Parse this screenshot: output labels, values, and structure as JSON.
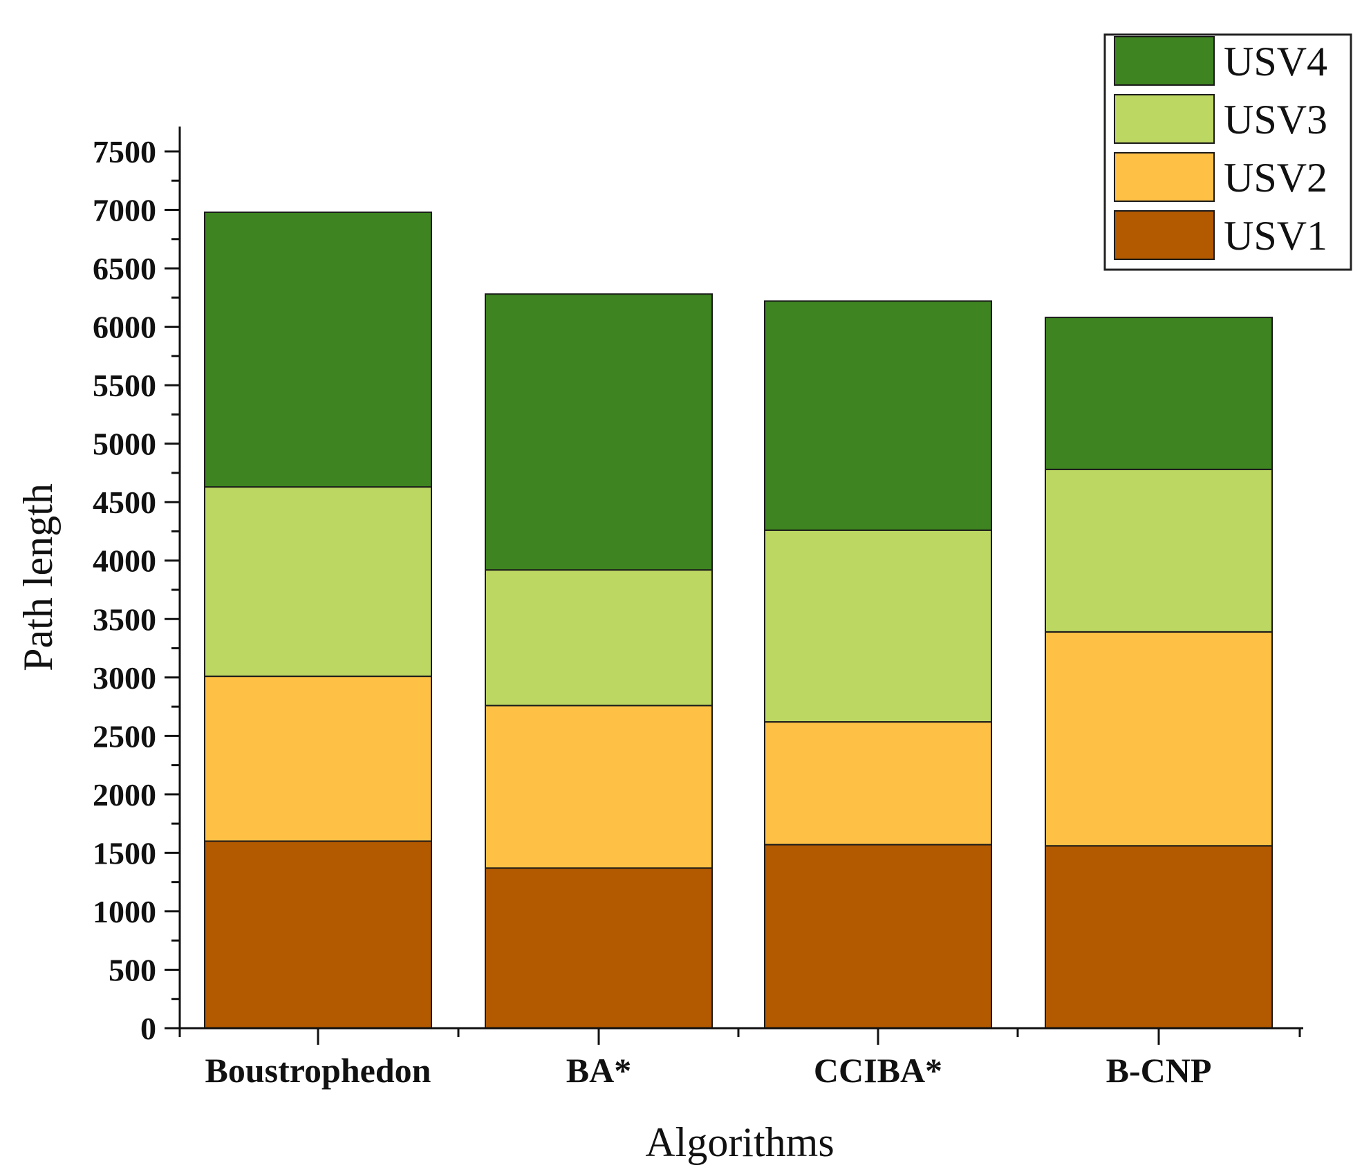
{
  "chart_data": {
    "type": "bar",
    "stacked": true,
    "title": "",
    "xlabel": "Algorithms",
    "ylabel": "Path length",
    "ylim": [
      0,
      7700
    ],
    "yticks": [
      0,
      500,
      1000,
      1500,
      2000,
      2500,
      3000,
      3500,
      4000,
      4500,
      5000,
      5500,
      6000,
      6500,
      7000,
      7500
    ],
    "yminor_step": 250,
    "categories": [
      "Boustrophedon",
      "BA*",
      "CCIBA*",
      "B-CNP"
    ],
    "series": [
      {
        "name": "USV1",
        "color": "#B35900",
        "values": [
          1600,
          1370,
          1570,
          1560
        ]
      },
      {
        "name": "USV2",
        "color": "#FFC145",
        "values": [
          1410,
          1390,
          1050,
          1830
        ]
      },
      {
        "name": "USV3",
        "color": "#BDD763",
        "values": [
          1620,
          1160,
          1640,
          1390
        ]
      },
      {
        "name": "USV4",
        "color": "#3E8420",
        "values": [
          2350,
          2360,
          1960,
          1300
        ]
      }
    ],
    "legend": {
      "placement": "top-right",
      "order": [
        "USV4",
        "USV3",
        "USV2",
        "USV1"
      ]
    },
    "grid": false
  }
}
